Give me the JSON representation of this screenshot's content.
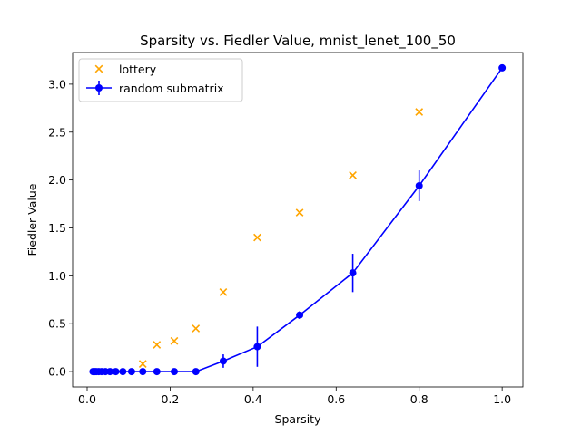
{
  "chart_data": {
    "type": "scatter",
    "title": "Sparsity vs. Fiedler Value, mnist_lenet_100_50",
    "xlabel": "Sparsity",
    "ylabel": "Fiedler Value",
    "xlim": [
      -0.035,
      1.05
    ],
    "ylim": [
      -0.16,
      3.33
    ],
    "xticks": [
      0.0,
      0.2,
      0.4,
      0.6,
      0.8,
      1.0
    ],
    "xtick_labels": [
      "0.0",
      "0.2",
      "0.4",
      "0.6",
      "0.8",
      "1.0"
    ],
    "yticks": [
      0.0,
      0.5,
      1.0,
      1.5,
      2.0,
      2.5,
      3.0
    ],
    "ytick_labels": [
      "0.0",
      "0.5",
      "1.0",
      "1.5",
      "2.0",
      "2.5",
      "3.0"
    ],
    "grid": false,
    "legend_position": "top-left",
    "series": [
      {
        "name": "lottery",
        "kind": "scatter",
        "marker": "x",
        "color": "#FFA500",
        "x": [
          0.134,
          0.168,
          0.21,
          0.262,
          0.328,
          0.41,
          0.512,
          0.64,
          0.8
        ],
        "y": [
          0.08,
          0.28,
          0.32,
          0.45,
          0.83,
          1.4,
          1.66,
          2.05,
          2.71
        ]
      },
      {
        "name": "random submatrix",
        "kind": "line-errorbar",
        "marker": "o",
        "color": "#0000FF",
        "x": [
          0.014,
          0.018,
          0.022,
          0.028,
          0.035,
          0.044,
          0.055,
          0.069,
          0.086,
          0.107,
          0.134,
          0.168,
          0.21,
          0.262,
          0.328,
          0.41,
          0.512,
          0.64,
          0.8,
          1.0
        ],
        "y": [
          0.0,
          0.0,
          0.0,
          0.0,
          0.0,
          0.0,
          0.0,
          0.0,
          0.0,
          0.0,
          0.0,
          0.0,
          0.0,
          0.0,
          0.11,
          0.26,
          0.59,
          1.03,
          1.94,
          3.17
        ],
        "yerr": [
          0.0,
          0.0,
          0.0,
          0.0,
          0.0,
          0.0,
          0.0,
          0.0,
          0.0,
          0.0,
          0.0,
          0.0,
          0.0,
          0.0,
          0.07,
          0.21,
          0.04,
          0.2,
          0.16,
          0.0
        ]
      }
    ]
  }
}
